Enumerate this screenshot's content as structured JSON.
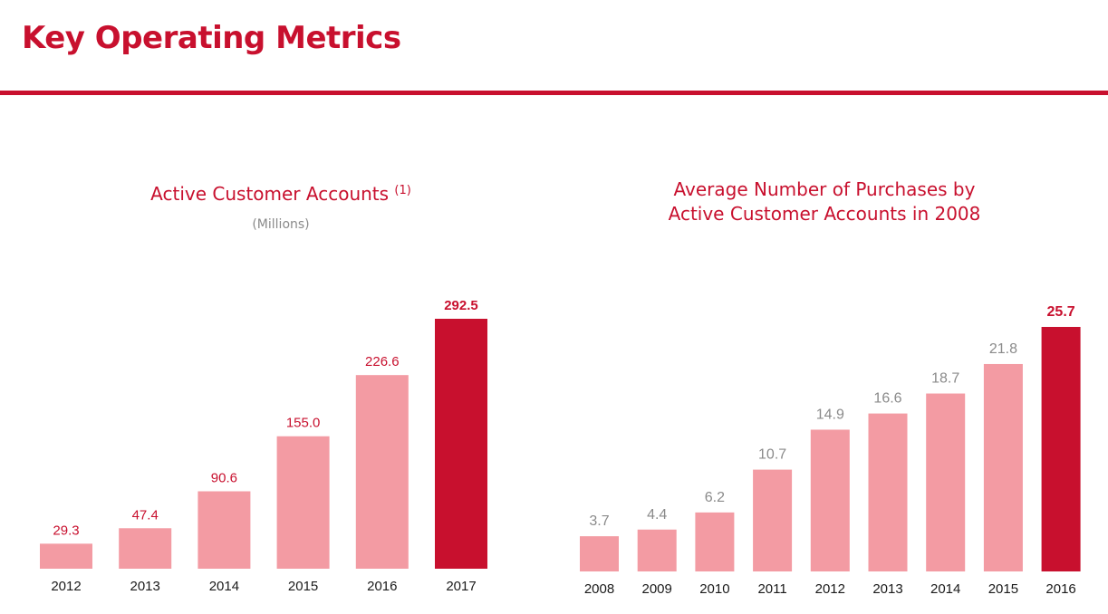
{
  "header": {
    "title": "Key Operating Metrics"
  },
  "colors": {
    "accent": "#c8102e",
    "bar": "#f39ba3",
    "highlight_bar": "#c8102e",
    "muted_text": "#8a8a8a"
  },
  "chart_data": [
    {
      "type": "bar",
      "title": "Active Customer Accounts",
      "title_superscript": "(1)",
      "subtitle": "(Millions)",
      "xlabel": "",
      "ylabel": "",
      "categories": [
        "2012",
        "2013",
        "2014",
        "2015",
        "2016",
        "2017"
      ],
      "values": [
        29.3,
        47.4,
        90.6,
        155.0,
        226.6,
        292.5
      ],
      "value_labels": [
        "29.3",
        "47.4",
        "90.6",
        "155.0",
        "226.6",
        "292.5"
      ],
      "highlight_index": 5,
      "grid": false,
      "ylim": [
        0,
        292.5
      ]
    },
    {
      "type": "bar",
      "title": "Average Number of Purchases by\nActive Customer Accounts in 2008",
      "xlabel": "",
      "ylabel": "",
      "categories": [
        "2008",
        "2009",
        "2010",
        "2011",
        "2012",
        "2013",
        "2014",
        "2015",
        "2016"
      ],
      "values": [
        3.7,
        4.4,
        6.2,
        10.7,
        14.9,
        16.6,
        18.7,
        21.8,
        25.7
      ],
      "value_labels": [
        "3.7",
        "4.4",
        "6.2",
        "10.7",
        "14.9",
        "16.6",
        "18.7",
        "21.8",
        "25.7"
      ],
      "highlight_index": 8,
      "grid": false,
      "ylim": [
        0,
        25.7
      ]
    }
  ]
}
